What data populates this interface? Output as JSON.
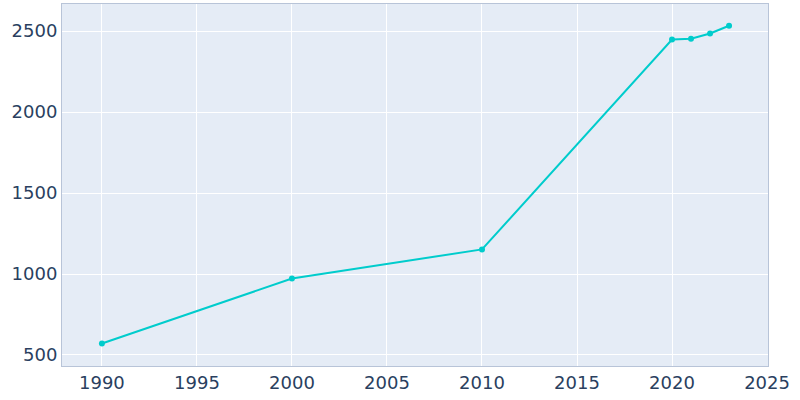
{
  "chart_data": {
    "type": "line",
    "x": [
      1990,
      2000,
      2010,
      2020,
      2021,
      2022,
      2023
    ],
    "values": [
      571,
      972,
      1152,
      2448,
      2452,
      2485,
      2533
    ],
    "color": "#00cccc",
    "marker": "circle",
    "xlim": [
      1987.9,
      2025.05
    ],
    "xticks": [
      1990,
      1995,
      2000,
      2005,
      2010,
      2015,
      2020,
      2025
    ],
    "ylim": [
      432,
      2667
    ],
    "yticks": [
      500,
      1000,
      1500,
      2000,
      2500
    ],
    "grid": true
  }
}
